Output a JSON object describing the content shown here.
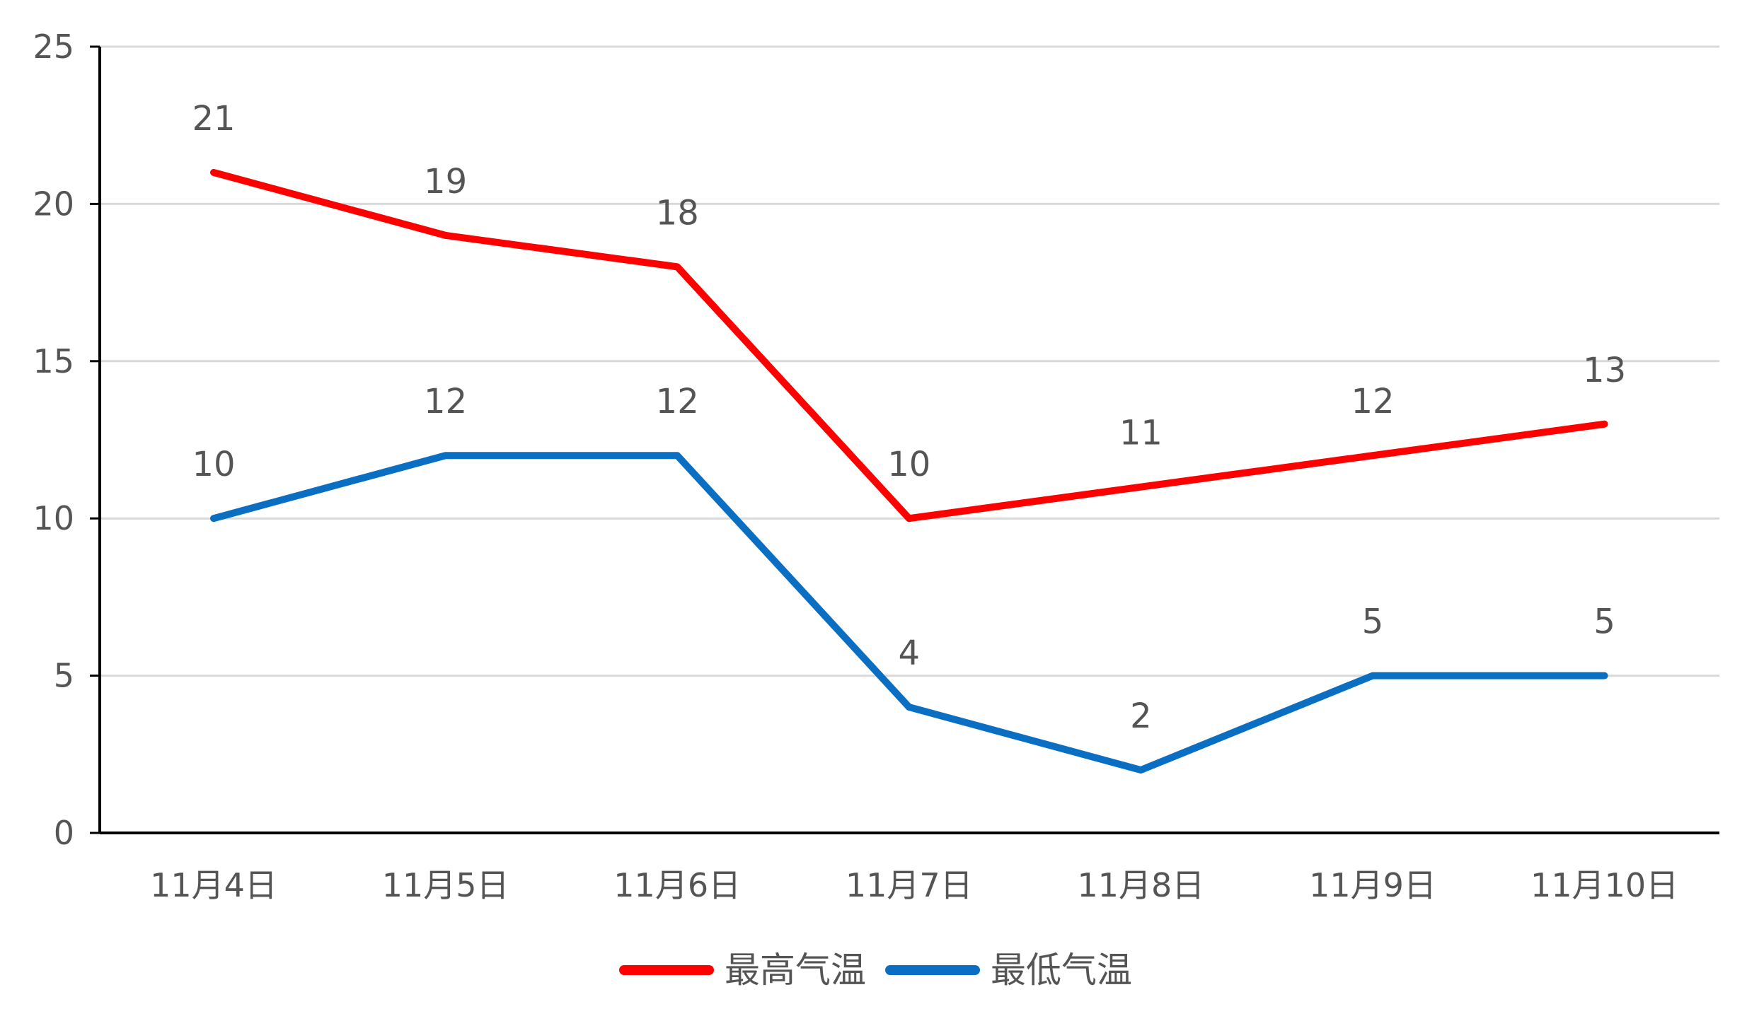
{
  "chart_data": {
    "type": "line",
    "categories": [
      "11月4日",
      "11月5日",
      "11月6日",
      "11月7日",
      "11月8日",
      "11月9日",
      "11月10日"
    ],
    "series": [
      {
        "name": "最高气温",
        "color": "#ff0000",
        "values": [
          21,
          19,
          18,
          10,
          11,
          12,
          13
        ]
      },
      {
        "name": "最低气温",
        "color": "#0a6fc2",
        "values": [
          10,
          12,
          12,
          4,
          2,
          5,
          5
        ]
      }
    ],
    "ylim": [
      0,
      25
    ],
    "yticks": [
      0,
      5,
      10,
      15,
      20,
      25
    ],
    "grid": true,
    "data_labels": true,
    "legend_position": "bottom-center",
    "axis_color": "#000000",
    "grid_color": "#d9d9d9"
  }
}
